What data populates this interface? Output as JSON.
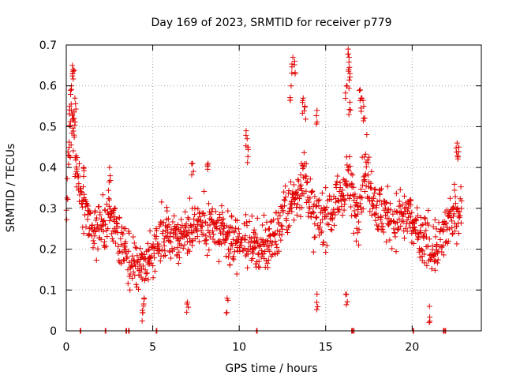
{
  "chart_data": {
    "type": "scatter",
    "title": "Day 169 of 2023, SRMTID for receiver p779",
    "xlabel": "GPS time / hours",
    "ylabel": "SRMTID / TECUs",
    "xlim": [
      0,
      24
    ],
    "ylim": [
      0,
      0.7
    ],
    "x_ticks": [
      0,
      5,
      10,
      15,
      20
    ],
    "x_tick_labels": [
      "0",
      "5",
      "10",
      "15",
      "20"
    ],
    "y_ticks": [
      0,
      0.1,
      0.2,
      0.3,
      0.4,
      0.5,
      0.6,
      0.7
    ],
    "y_tick_labels": [
      "0",
      "0.1",
      "0.2",
      "0.3",
      "0.4",
      "0.5",
      "0.6",
      "0.7"
    ],
    "grid": true,
    "marker": "plus",
    "colors": {
      "series": "#e00000",
      "grid": "#a0a0a0",
      "axis": "#000000"
    },
    "series": [
      {
        "name": "SRMTID",
        "envelope": [
          {
            "x": 0.0,
            "y": 0.32
          },
          {
            "x": 0.3,
            "y": 0.5
          },
          {
            "x": 0.8,
            "y": 0.35
          },
          {
            "x": 1.5,
            "y": 0.24
          },
          {
            "x": 2.5,
            "y": 0.28
          },
          {
            "x": 3.2,
            "y": 0.22
          },
          {
            "x": 4.0,
            "y": 0.15
          },
          {
            "x": 5.0,
            "y": 0.18
          },
          {
            "x": 5.8,
            "y": 0.25
          },
          {
            "x": 6.5,
            "y": 0.22
          },
          {
            "x": 7.5,
            "y": 0.27
          },
          {
            "x": 8.5,
            "y": 0.25
          },
          {
            "x": 9.5,
            "y": 0.22
          },
          {
            "x": 10.5,
            "y": 0.22
          },
          {
            "x": 11.5,
            "y": 0.2
          },
          {
            "x": 12.5,
            "y": 0.27
          },
          {
            "x": 13.3,
            "y": 0.33
          },
          {
            "x": 13.8,
            "y": 0.38
          },
          {
            "x": 14.3,
            "y": 0.27
          },
          {
            "x": 15.0,
            "y": 0.28
          },
          {
            "x": 15.8,
            "y": 0.32
          },
          {
            "x": 16.3,
            "y": 0.38
          },
          {
            "x": 16.8,
            "y": 0.28
          },
          {
            "x": 17.3,
            "y": 0.4
          },
          {
            "x": 18.0,
            "y": 0.3
          },
          {
            "x": 18.8,
            "y": 0.27
          },
          {
            "x": 19.8,
            "y": 0.28
          },
          {
            "x": 20.5,
            "y": 0.22
          },
          {
            "x": 21.5,
            "y": 0.2
          },
          {
            "x": 22.3,
            "y": 0.28
          },
          {
            "x": 22.8,
            "y": 0.3
          }
        ],
        "highlights": [
          {
            "x": 0.35,
            "y": 0.65
          },
          {
            "x": 0.4,
            "y": 0.64
          },
          {
            "x": 0.5,
            "y": 0.57
          },
          {
            "x": 0.3,
            "y": 0.6
          },
          {
            "x": 0.45,
            "y": 0.52
          },
          {
            "x": 0.2,
            "y": 0.55
          },
          {
            "x": 1.0,
            "y": 0.4
          },
          {
            "x": 2.5,
            "y": 0.4
          },
          {
            "x": 7.3,
            "y": 0.41
          },
          {
            "x": 8.2,
            "y": 0.41
          },
          {
            "x": 10.4,
            "y": 0.49
          },
          {
            "x": 10.5,
            "y": 0.45
          },
          {
            "x": 13.1,
            "y": 0.67
          },
          {
            "x": 13.2,
            "y": 0.66
          },
          {
            "x": 13.0,
            "y": 0.6
          },
          {
            "x": 13.7,
            "y": 0.57
          },
          {
            "x": 13.8,
            "y": 0.55
          },
          {
            "x": 14.5,
            "y": 0.54
          },
          {
            "x": 16.3,
            "y": 0.69
          },
          {
            "x": 16.35,
            "y": 0.67
          },
          {
            "x": 16.4,
            "y": 0.63
          },
          {
            "x": 16.2,
            "y": 0.6
          },
          {
            "x": 16.4,
            "y": 0.56
          },
          {
            "x": 17.0,
            "y": 0.59
          },
          {
            "x": 17.1,
            "y": 0.57
          },
          {
            "x": 17.2,
            "y": 0.55
          },
          {
            "x": 22.6,
            "y": 0.46
          },
          {
            "x": 22.7,
            "y": 0.45
          },
          {
            "x": 4.4,
            "y": 0.05
          },
          {
            "x": 4.5,
            "y": 0.08
          },
          {
            "x": 16.2,
            "y": 0.09
          },
          {
            "x": 21.0,
            "y": 0.06
          },
          {
            "x": 9.3,
            "y": 0.08
          },
          {
            "x": 7.0,
            "y": 0.07
          },
          {
            "x": 14.5,
            "y": 0.09
          }
        ],
        "zero_points": [
          0.8,
          2.25,
          3.45,
          3.6,
          5.2,
          11.0,
          16.5,
          16.6,
          20.05,
          21.8,
          21.9
        ]
      }
    ]
  }
}
